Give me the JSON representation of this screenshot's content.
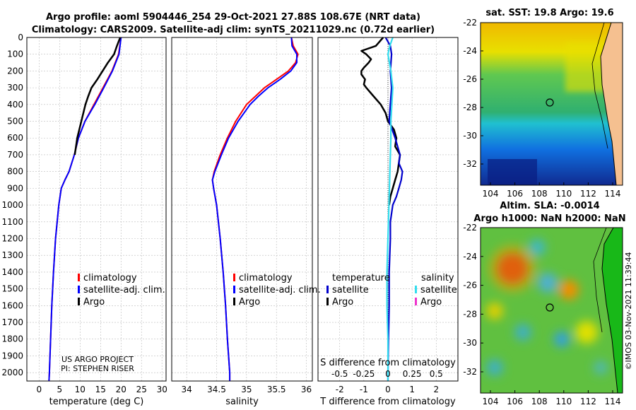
{
  "header": {
    "title_line1": "Argo profile: aoml 5904446_254 29-Oct-2021 27.88S 108.67E (NRT data)",
    "title_line2": "Climatology: CARS2009. Satellite-adj clim: synTS_20211029.nc (0.72d earlier)"
  },
  "colors": {
    "climatology": "#ff0000",
    "satellite_adj": "#0000ff",
    "argo": "#000000",
    "temp_diff_sat": "#0000cc",
    "sal_diff_sat": "#33ddee",
    "sal_diff_argo": "#ee33cc"
  },
  "depth_ticks": [
    "0",
    "100",
    "200",
    "300",
    "400",
    "500",
    "600",
    "700",
    "800",
    "900",
    "1000",
    "1100",
    "1200",
    "1300",
    "1400",
    "1500",
    "1600",
    "1700",
    "1800",
    "1900",
    "2000"
  ],
  "credit": {
    "line1": "US ARGO PROJECT",
    "line2": "PI: STEPHEN RISER"
  },
  "chart_data": [
    {
      "type": "line",
      "name": "temperature",
      "xlabel": "temperature (deg C)",
      "ylabel": "depth",
      "xlim": [
        -3,
        31
      ],
      "ylim": [
        2050,
        0
      ],
      "x_ticks": [
        "0",
        "5",
        "10",
        "15",
        "20",
        "25",
        "30"
      ],
      "legend": [
        "climatology",
        "satellite-adj. clim.",
        "Argo"
      ],
      "series": [
        {
          "name": "climatology",
          "depth": [
            0,
            100,
            200,
            300,
            400,
            500,
            600,
            700,
            800,
            850,
            900,
            1000,
            1200,
            1400,
            1600,
            1800,
            2000,
            2050
          ],
          "values": [
            20.0,
            19.4,
            17.8,
            15.6,
            13.4,
            11.2,
            9.6,
            8.6,
            7.3,
            6.3,
            5.4,
            4.8,
            4.0,
            3.5,
            3.1,
            2.8,
            2.5,
            2.4
          ]
        },
        {
          "name": "satellite-adj. clim.",
          "depth": [
            0,
            100,
            200,
            300,
            400,
            500,
            600,
            700,
            800,
            850,
            900,
            1000,
            1200,
            1400,
            1600,
            1800,
            2000,
            2050
          ],
          "values": [
            20.0,
            19.5,
            17.9,
            15.8,
            13.6,
            11.2,
            9.6,
            8.6,
            7.3,
            6.3,
            5.4,
            4.8,
            4.0,
            3.5,
            3.1,
            2.8,
            2.5,
            2.4
          ]
        },
        {
          "name": "Argo",
          "depth": [
            0,
            50,
            100,
            150,
            200,
            250,
            300,
            350,
            400,
            500,
            600,
            700
          ],
          "values": [
            19.8,
            19.0,
            18.3,
            16.8,
            15.5,
            14.2,
            12.8,
            12.0,
            11.3,
            10.3,
            9.3,
            8.7
          ]
        }
      ]
    },
    {
      "type": "line",
      "name": "salinity",
      "xlabel": "salinity",
      "ylabel": "depth",
      "xlim": [
        33.75,
        36.1
      ],
      "ylim": [
        2050,
        0
      ],
      "x_ticks": [
        "34",
        "34.5",
        "35",
        "35.5",
        "36"
      ],
      "legend": [
        "climatology",
        "satellite-adj. clim.",
        "Argo"
      ],
      "series": [
        {
          "name": "climatology",
          "depth": [
            0,
            50,
            100,
            150,
            200,
            250,
            300,
            350,
            400,
            500,
            600,
            700,
            800,
            850,
            900,
            1000,
            1200,
            1400,
            1600,
            1800,
            2000,
            2050
          ],
          "values": [
            35.75,
            35.78,
            35.86,
            35.82,
            35.7,
            35.5,
            35.3,
            35.15,
            35.0,
            34.82,
            34.68,
            34.56,
            34.46,
            34.43,
            34.45,
            34.5,
            34.56,
            34.61,
            34.65,
            34.68,
            34.72,
            34.72
          ]
        },
        {
          "name": "satellite-adj. clim.",
          "depth": [
            0,
            50,
            100,
            150,
            200,
            250,
            300,
            350,
            400,
            500,
            600,
            700,
            800,
            850,
            900,
            1000,
            1200,
            1400,
            1600,
            1800,
            2000,
            2050
          ],
          "values": [
            35.75,
            35.76,
            35.84,
            35.84,
            35.74,
            35.56,
            35.36,
            35.2,
            35.06,
            34.86,
            34.7,
            34.58,
            34.47,
            34.43,
            34.45,
            34.5,
            34.56,
            34.61,
            34.65,
            34.68,
            34.72,
            34.72
          ]
        }
      ]
    },
    {
      "type": "line",
      "name": "differences",
      "xlabel": "T difference from climatology",
      "x2label": "S difference from climatology",
      "xlim": [
        -2.9,
        2.9
      ],
      "ylim": [
        2050,
        0
      ],
      "x_ticks": [
        "-2",
        "-1",
        "0",
        "1",
        "2"
      ],
      "x2_ticks": [
        "-0.5",
        "-0.25",
        "0",
        "0.25",
        "0.5"
      ],
      "legend_temperature_title": "temperature",
      "legend_salinity_title": "salinity",
      "legend_temperature": [
        "satellite",
        "Argo"
      ],
      "legend_salinity": [
        "satellite",
        "Argo"
      ],
      "series": [
        {
          "name": "T Argo",
          "depth": [
            0,
            50,
            80,
            100,
            130,
            150,
            180,
            200,
            220,
            250,
            280,
            300,
            350,
            400,
            450,
            500,
            550,
            600,
            650,
            700,
            750,
            800,
            850,
            900,
            950,
            1000
          ],
          "values": [
            -0.2,
            -0.5,
            -1.1,
            -0.9,
            -0.7,
            -0.8,
            -1.0,
            -1.1,
            -1.1,
            -0.95,
            -1.0,
            -0.9,
            -0.6,
            -0.3,
            -0.1,
            0.0,
            0.25,
            0.35,
            0.3,
            0.5,
            0.45,
            0.4,
            0.3,
            0.2,
            0.1,
            0.05
          ]
        },
        {
          "name": "T satellite",
          "depth": [
            0,
            50,
            100,
            200,
            300,
            400,
            500,
            600,
            700,
            750,
            800,
            850,
            900,
            950,
            1000,
            1100,
            1200,
            1400,
            1600,
            1800,
            2000,
            2050
          ],
          "values": [
            -0.1,
            0.1,
            0.15,
            0.1,
            0.15,
            0.1,
            0.05,
            0.3,
            0.5,
            0.45,
            0.6,
            0.55,
            0.45,
            0.35,
            0.2,
            0.1,
            0.1,
            0.05,
            0.05,
            0.02,
            0.0,
            0.0
          ]
        },
        {
          "name": "S satellite",
          "depth": [
            0,
            50,
            100,
            200,
            300,
            400,
            500,
            600,
            800,
            1000,
            1200,
            1400,
            1600,
            1800,
            2000,
            2050
          ],
          "values": [
            0.05,
            0.02,
            0.0,
            0.03,
            0.05,
            0.04,
            0.03,
            0.03,
            0.02,
            0.01,
            0.0,
            -0.01,
            -0.01,
            0.0,
            0.0,
            0.0
          ]
        }
      ]
    },
    {
      "type": "heatmap",
      "name": "sst_map",
      "title": "sat. SST: 19.8 Argo: 19.6",
      "x_ticks": [
        "104",
        "106",
        "108",
        "110",
        "112",
        "114"
      ],
      "y_ticks": [
        "-22",
        "-24",
        "-26",
        "-28",
        "-30",
        "-32"
      ],
      "argo_position": {
        "lon": 108.67,
        "lat": -27.88
      }
    },
    {
      "type": "heatmap",
      "name": "sla_map",
      "title_line1": "Altim. SLA: -0.0014",
      "title_line2": "Argo h1000: NaN h2000: NaN",
      "x_ticks": [
        "104",
        "106",
        "108",
        "110",
        "112",
        "114"
      ],
      "y_ticks": [
        "-22",
        "-24",
        "-26",
        "-28",
        "-30",
        "-32"
      ],
      "argo_position": {
        "lon": 108.67,
        "lat": -27.88
      },
      "stamp": "©IMOS 03-Nov-2021 11:39:44"
    }
  ]
}
